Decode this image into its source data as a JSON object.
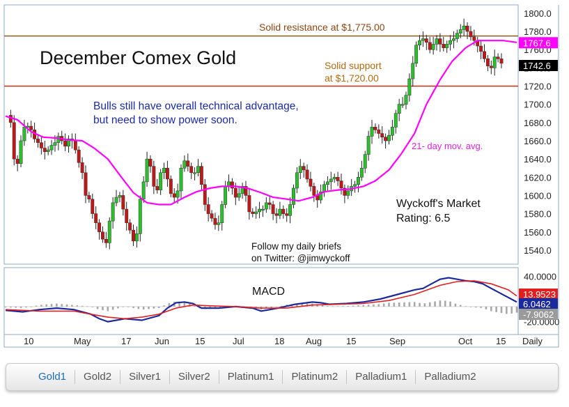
{
  "chart_data": [
    {
      "type": "candlestick",
      "title": "December Comex Gold",
      "y_ticks": [
        1540,
        1560,
        1580,
        1600,
        1620,
        1640,
        1660,
        1680,
        1700,
        1720,
        1740,
        1760,
        1780,
        1800
      ],
      "y_tick_labels": [
        "1540.0",
        "1560.0",
        "1580.0",
        "1600.0",
        "1620.0",
        "1640.0",
        "1660.0",
        "1680.0",
        "1700.0",
        "1720.0",
        "1740.0",
        "1760.0",
        "1780.0",
        "1800.0"
      ],
      "ylim": [
        1530,
        1803
      ],
      "x_labels": [
        "10",
        "May",
        "17",
        "Jun",
        "15",
        "Jul",
        "18",
        "Aug",
        "15",
        "Sep",
        "Oct",
        "15",
        "Daily"
      ],
      "horizontal_lines": [
        {
          "value": 1775,
          "label": "Solid resistance at $1,775.00",
          "color": "#8b5a2b"
        },
        {
          "value": 1720,
          "label": "Solid support at $1,720.00",
          "color": "#c0392b"
        }
      ],
      "annotations": [
        "Bulls still have overall technical advantage, but need to show power soon.",
        "21- day mov. avg.",
        "Wyckoff's Market Rating: 6.5",
        "Follow my daily briefs on Twitter:  @jimwyckoff"
      ],
      "price_tags": [
        {
          "label": "1767.6",
          "value": 1767.6,
          "color": "#ff00ff"
        },
        {
          "label": "1742.6",
          "value": 1742.6,
          "color": "#000000"
        }
      ],
      "series": [
        {
          "name": "21- day mov. avg.",
          "color": "#ff00ff",
          "values": [
            [
              0,
              1687
            ],
            [
              7,
              1683
            ],
            [
              15,
              1670
            ],
            [
              22,
              1664
            ],
            [
              30,
              1663
            ],
            [
              37,
              1661
            ],
            [
              45,
              1660
            ],
            [
              52,
              1652
            ],
            [
              60,
              1640
            ],
            [
              68,
              1620
            ],
            [
              75,
              1603
            ],
            [
              83,
              1592
            ],
            [
              90,
              1590
            ],
            [
              97,
              1590
            ],
            [
              105,
              1598
            ],
            [
              112,
              1604
            ],
            [
              120,
              1608
            ],
            [
              127,
              1610
            ],
            [
              135,
              1610
            ],
            [
              142,
              1608
            ],
            [
              150,
              1603
            ],
            [
              157,
              1598
            ],
            [
              165,
              1596
            ],
            [
              172,
              1594
            ],
            [
              180,
              1598
            ],
            [
              187,
              1604
            ],
            [
              195,
              1606
            ],
            [
              202,
              1607
            ],
            [
              210,
              1610
            ],
            [
              217,
              1616
            ],
            [
              225,
              1628
            ],
            [
              232,
              1645
            ],
            [
              240,
              1668
            ],
            [
              247,
              1700
            ],
            [
              255,
              1727
            ],
            [
              262,
              1747
            ],
            [
              270,
              1762
            ],
            [
              277,
              1770
            ],
            [
              285,
              1770
            ],
            [
              292,
              1770
            ],
            [
              300,
              1768
            ]
          ]
        },
        {
          "name": "candles",
          "color": "#2bb52b",
          "values": [
            [
              0,
              1688
            ],
            [
              3,
              1680
            ],
            [
              5,
              1640
            ],
            [
              7,
              1635
            ],
            [
              9,
              1660
            ],
            [
              11,
              1675
            ],
            [
              13,
              1676
            ],
            [
              15,
              1672
            ],
            [
              17,
              1662
            ],
            [
              19,
              1658
            ],
            [
              21,
              1652
            ],
            [
              23,
              1648
            ],
            [
              25,
              1650
            ],
            [
              27,
              1655
            ],
            [
              29,
              1658
            ],
            [
              31,
              1665
            ],
            [
              33,
              1660
            ],
            [
              35,
              1654
            ],
            [
              37,
              1662
            ],
            [
              39,
              1660
            ],
            [
              41,
              1650
            ],
            [
              43,
              1636
            ],
            [
              45,
              1625
            ],
            [
              47,
              1600
            ],
            [
              49,
              1596
            ],
            [
              51,
              1580
            ],
            [
              53,
              1570
            ],
            [
              55,
              1560
            ],
            [
              57,
              1552
            ],
            [
              59,
              1548
            ],
            [
              61,
              1572
            ],
            [
              63,
              1592
            ],
            [
              65,
              1598
            ],
            [
              67,
              1600
            ],
            [
              69,
              1585
            ],
            [
              71,
              1570
            ],
            [
              73,
              1562
            ],
            [
              75,
              1550
            ],
            [
              77,
              1558
            ],
            [
              79,
              1596
            ],
            [
              81,
              1615
            ],
            [
              83,
              1640
            ],
            [
              85,
              1632
            ],
            [
              87,
              1610
            ],
            [
              89,
              1606
            ],
            [
              91,
              1625
            ],
            [
              93,
              1630
            ],
            [
              95,
              1618
            ],
            [
              97,
              1602
            ],
            [
              99,
              1598
            ],
            [
              101,
              1605
            ],
            [
              103,
              1630
            ],
            [
              105,
              1638
            ],
            [
              107,
              1632
            ],
            [
              109,
              1625
            ],
            [
              111,
              1625
            ],
            [
              113,
              1632
            ],
            [
              115,
              1612
            ],
            [
              117,
              1590
            ],
            [
              119,
              1580
            ],
            [
              121,
              1575
            ],
            [
              123,
              1568
            ],
            [
              125,
              1570
            ],
            [
              127,
              1590
            ],
            [
              129,
              1610
            ],
            [
              131,
              1615
            ],
            [
              133,
              1608
            ],
            [
              135,
              1598
            ],
            [
              137,
              1602
            ],
            [
              139,
              1610
            ],
            [
              141,
              1600
            ],
            [
              143,
              1582
            ],
            [
              145,
              1580
            ],
            [
              147,
              1582
            ],
            [
              149,
              1585
            ],
            [
              151,
              1585
            ],
            [
              153,
              1592
            ],
            [
              155,
              1590
            ],
            [
              157,
              1580
            ],
            [
              159,
              1578
            ],
            [
              161,
              1585
            ],
            [
              163,
              1580
            ],
            [
              165,
              1578
            ],
            [
              167,
              1590
            ],
            [
              169,
              1608
            ],
            [
              171,
              1625
            ],
            [
              173,
              1632
            ],
            [
              175,
              1628
            ],
            [
              177,
              1618
            ],
            [
              179,
              1610
            ],
            [
              181,
              1600
            ],
            [
              183,
              1595
            ],
            [
              185,
              1604
            ],
            [
              187,
              1612
            ],
            [
              189,
              1615
            ],
            [
              191,
              1618
            ],
            [
              193,
              1620
            ],
            [
              195,
              1616
            ],
            [
              197,
              1608
            ],
            [
              199,
              1600
            ],
            [
              201,
              1605
            ],
            [
              203,
              1610
            ],
            [
              205,
              1612
            ],
            [
              207,
              1620
            ],
            [
              209,
              1630
            ],
            [
              211,
              1645
            ],
            [
              213,
              1665
            ],
            [
              215,
              1675
            ],
            [
              217,
              1672
            ],
            [
              219,
              1668
            ],
            [
              221,
              1664
            ],
            [
              223,
              1660
            ],
            [
              225,
              1666
            ],
            [
              227,
              1675
            ],
            [
              229,
              1690
            ],
            [
              231,
              1700
            ],
            [
              233,
              1700
            ],
            [
              235,
              1710
            ],
            [
              237,
              1728
            ],
            [
              239,
              1745
            ],
            [
              241,
              1765
            ],
            [
              243,
              1770
            ],
            [
              245,
              1772
            ],
            [
              247,
              1768
            ],
            [
              249,
              1760
            ],
            [
              251,
              1766
            ],
            [
              253,
              1772
            ],
            [
              255,
              1766
            ],
            [
              257,
              1762
            ],
            [
              259,
              1766
            ],
            [
              261,
              1770
            ],
            [
              263,
              1772
            ],
            [
              265,
              1778
            ],
            [
              267,
              1782
            ],
            [
              269,
              1786
            ],
            [
              271,
              1780
            ],
            [
              273,
              1774
            ],
            [
              275,
              1770
            ],
            [
              277,
              1764
            ],
            [
              279,
              1758
            ],
            [
              281,
              1750
            ],
            [
              283,
              1742
            ],
            [
              285,
              1740
            ],
            [
              287,
              1752
            ],
            [
              289,
              1750
            ],
            [
              291,
              1745
            ]
          ]
        }
      ]
    },
    {
      "type": "line",
      "title": "MACD",
      "y_tick_labels": [
        "40.0000",
        "-20.0000"
      ],
      "ylim": [
        -24,
        44
      ],
      "price_tags": [
        {
          "label": "13.9523",
          "value": 13.9523,
          "color": "#e02020"
        },
        {
          "label": "6.0462",
          "value": 6.0462,
          "color": "#1a2a9c"
        },
        {
          "label": "-7.9062",
          "value": -7.9062,
          "color": "#9a9a9a"
        }
      ],
      "series": [
        {
          "name": "MACD",
          "color": "#1a2a9c",
          "values": [
            [
              0,
              -5
            ],
            [
              10,
              -7
            ],
            [
              20,
              -4
            ],
            [
              30,
              -2
            ],
            [
              40,
              -4
            ],
            [
              50,
              -10
            ],
            [
              55,
              -16
            ],
            [
              60,
              -20
            ],
            [
              65,
              -18
            ],
            [
              70,
              -16
            ],
            [
              80,
              -18
            ],
            [
              90,
              -12
            ],
            [
              95,
              -2
            ],
            [
              100,
              5
            ],
            [
              105,
              6
            ],
            [
              110,
              4
            ],
            [
              115,
              -2
            ],
            [
              125,
              -2
            ],
            [
              135,
              0
            ],
            [
              145,
              -2
            ],
            [
              150,
              -6
            ],
            [
              160,
              -2
            ],
            [
              170,
              3
            ],
            [
              180,
              6
            ],
            [
              185,
              5
            ],
            [
              190,
              3
            ],
            [
              200,
              4
            ],
            [
              210,
              6
            ],
            [
              220,
              10
            ],
            [
              230,
              16
            ],
            [
              240,
              22
            ],
            [
              245,
              24
            ],
            [
              250,
              30
            ],
            [
              255,
              36
            ],
            [
              260,
              38
            ],
            [
              265,
              36
            ],
            [
              270,
              34
            ],
            [
              275,
              33
            ],
            [
              280,
              30
            ],
            [
              285,
              24
            ],
            [
              290,
              18
            ],
            [
              295,
              12
            ],
            [
              300,
              6
            ]
          ]
        },
        {
          "name": "Signal",
          "color": "#e02020",
          "values": [
            [
              0,
              -4
            ],
            [
              20,
              -6
            ],
            [
              40,
              -6
            ],
            [
              50,
              -10
            ],
            [
              60,
              -14
            ],
            [
              70,
              -16
            ],
            [
              80,
              -14
            ],
            [
              90,
              -10
            ],
            [
              100,
              -2
            ],
            [
              110,
              2
            ],
            [
              120,
              1
            ],
            [
              135,
              0
            ],
            [
              150,
              -2
            ],
            [
              165,
              -2
            ],
            [
              180,
              2
            ],
            [
              195,
              3
            ],
            [
              210,
              4
            ],
            [
              225,
              8
            ],
            [
              240,
              16
            ],
            [
              255,
              28
            ],
            [
              265,
              33
            ],
            [
              275,
              34
            ],
            [
              285,
              30
            ],
            [
              295,
              22
            ],
            [
              300,
              14
            ]
          ]
        }
      ]
    }
  ],
  "tabs": [
    "Gold1",
    "Gold2",
    "Silver1",
    "Silver2",
    "Platinum1",
    "Platinum2",
    "Palladium1",
    "Palladium2"
  ],
  "active_tab": "Gold1"
}
